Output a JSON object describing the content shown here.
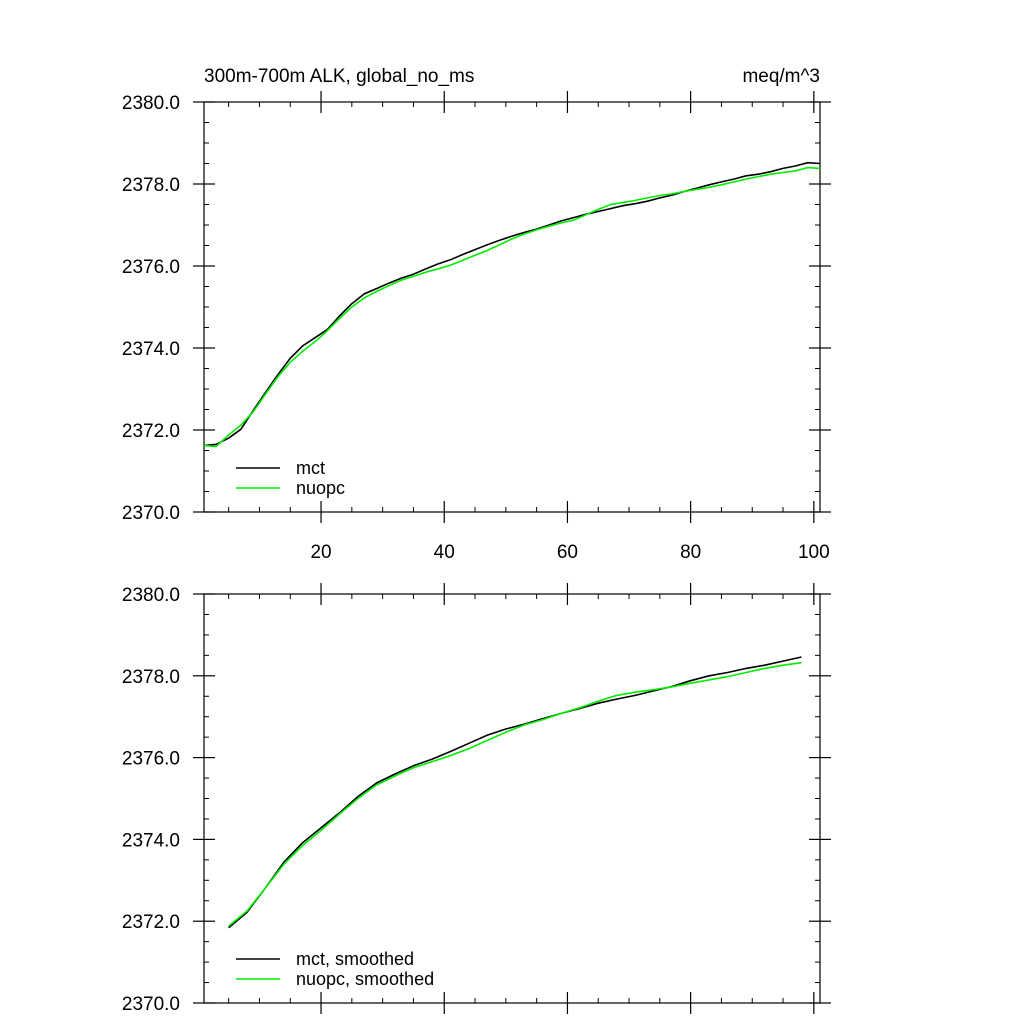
{
  "colors": {
    "mct": "#000000",
    "nuopc": "#00ee00",
    "axis": "#000000",
    "background": "#ffffff"
  },
  "chart_data": [
    {
      "type": "line",
      "title_left": "300m-700m ALK, global_no_ms",
      "title_right": "meq/m^3",
      "xlim": [
        1,
        101
      ],
      "ylim": [
        2370,
        2380
      ],
      "x_ticks": [
        20,
        40,
        60,
        80,
        100
      ],
      "x_tick_labels": [
        "20",
        "40",
        "60",
        "80",
        "100"
      ],
      "y_ticks": [
        2370,
        2372,
        2374,
        2376,
        2378,
        2380
      ],
      "y_tick_labels": [
        "2370.0",
        "2372.0",
        "2374.0",
        "2376.0",
        "2378.0",
        "2380.0"
      ],
      "grid": false,
      "legend_position": "bottom-left",
      "series": [
        {
          "name": "mct",
          "color": "#000000",
          "x": [
            1,
            3,
            5,
            7,
            9,
            11,
            13,
            15,
            17,
            19,
            21,
            23,
            25,
            27,
            29,
            31,
            33,
            35,
            37,
            39,
            41,
            43,
            45,
            47,
            49,
            51,
            53,
            55,
            57,
            59,
            61,
            63,
            65,
            67,
            69,
            71,
            73,
            75,
            77,
            79,
            81,
            83,
            85,
            87,
            89,
            91,
            93,
            95,
            97,
            99,
            101
          ],
          "y": [
            2371.62,
            2371.65,
            2371.8,
            2372.02,
            2372.48,
            2372.92,
            2373.35,
            2373.75,
            2374.05,
            2374.25,
            2374.45,
            2374.78,
            2375.08,
            2375.32,
            2375.45,
            2375.58,
            2375.7,
            2375.8,
            2375.93,
            2376.05,
            2376.15,
            2376.28,
            2376.4,
            2376.52,
            2376.63,
            2376.73,
            2376.82,
            2376.9,
            2377.0,
            2377.1,
            2377.18,
            2377.26,
            2377.33,
            2377.4,
            2377.47,
            2377.52,
            2377.58,
            2377.66,
            2377.73,
            2377.82,
            2377.9,
            2377.98,
            2378.05,
            2378.12,
            2378.2,
            2378.24,
            2378.3,
            2378.38,
            2378.44,
            2378.52,
            2378.5
          ]
        },
        {
          "name": "nuopc",
          "color": "#00ee00",
          "x": [
            1,
            3,
            5,
            7,
            9,
            11,
            13,
            15,
            17,
            19,
            21,
            23,
            25,
            27,
            29,
            31,
            33,
            35,
            37,
            39,
            41,
            43,
            45,
            47,
            49,
            51,
            53,
            55,
            57,
            59,
            61,
            63,
            65,
            67,
            69,
            71,
            73,
            75,
            77,
            79,
            81,
            83,
            85,
            87,
            89,
            91,
            93,
            95,
            97,
            99,
            101
          ],
          "y": [
            2371.62,
            2371.6,
            2371.88,
            2372.12,
            2372.45,
            2372.88,
            2373.3,
            2373.65,
            2373.92,
            2374.15,
            2374.42,
            2374.72,
            2375.0,
            2375.22,
            2375.38,
            2375.52,
            2375.65,
            2375.75,
            2375.85,
            2375.93,
            2376.02,
            2376.14,
            2376.26,
            2376.38,
            2376.52,
            2376.66,
            2376.78,
            2376.88,
            2376.97,
            2377.05,
            2377.12,
            2377.25,
            2377.38,
            2377.5,
            2377.55,
            2377.6,
            2377.66,
            2377.72,
            2377.76,
            2377.82,
            2377.87,
            2377.92,
            2377.98,
            2378.05,
            2378.12,
            2378.18,
            2378.24,
            2378.28,
            2378.32,
            2378.4,
            2378.38
          ]
        }
      ]
    },
    {
      "type": "line",
      "xlim": [
        1,
        101
      ],
      "ylim": [
        2370,
        2380
      ],
      "x_ticks": [
        20,
        40,
        60,
        80,
        100
      ],
      "y_ticks": [
        2370,
        2372,
        2374,
        2376,
        2378,
        2380
      ],
      "y_tick_labels": [
        "2370.0",
        "2372.0",
        "2374.0",
        "2376.0",
        "2378.0",
        "2380.0"
      ],
      "grid": false,
      "legend_position": "bottom-left",
      "series": [
        {
          "name": "mct, smoothed",
          "color": "#000000",
          "x": [
            5,
            8,
            11,
            14,
            17,
            20,
            23,
            26,
            29,
            32,
            35,
            38,
            41,
            44,
            47,
            50,
            53,
            56,
            59,
            62,
            65,
            68,
            71,
            74,
            77,
            80,
            83,
            86,
            89,
            92,
            95,
            98
          ],
          "y": [
            2371.84,
            2372.22,
            2372.82,
            2373.45,
            2373.92,
            2374.28,
            2374.65,
            2375.05,
            2375.38,
            2375.6,
            2375.8,
            2375.96,
            2376.15,
            2376.35,
            2376.55,
            2376.7,
            2376.82,
            2376.95,
            2377.08,
            2377.2,
            2377.33,
            2377.43,
            2377.52,
            2377.63,
            2377.74,
            2377.88,
            2378.0,
            2378.08,
            2378.18,
            2378.26,
            2378.36,
            2378.46
          ]
        },
        {
          "name": "nuopc, smoothed",
          "color": "#00ee00",
          "x": [
            5,
            8,
            11,
            14,
            17,
            20,
            23,
            26,
            29,
            32,
            35,
            38,
            41,
            44,
            47,
            50,
            53,
            56,
            59,
            62,
            65,
            68,
            71,
            74,
            77,
            80,
            83,
            86,
            89,
            92,
            95,
            98
          ],
          "y": [
            2371.88,
            2372.25,
            2372.82,
            2373.4,
            2373.85,
            2374.22,
            2374.62,
            2375.0,
            2375.33,
            2375.55,
            2375.75,
            2375.9,
            2376.05,
            2376.22,
            2376.42,
            2376.62,
            2376.8,
            2376.93,
            2377.08,
            2377.22,
            2377.38,
            2377.52,
            2377.6,
            2377.66,
            2377.73,
            2377.82,
            2377.9,
            2377.98,
            2378.08,
            2378.18,
            2378.26,
            2378.32
          ]
        }
      ]
    }
  ]
}
